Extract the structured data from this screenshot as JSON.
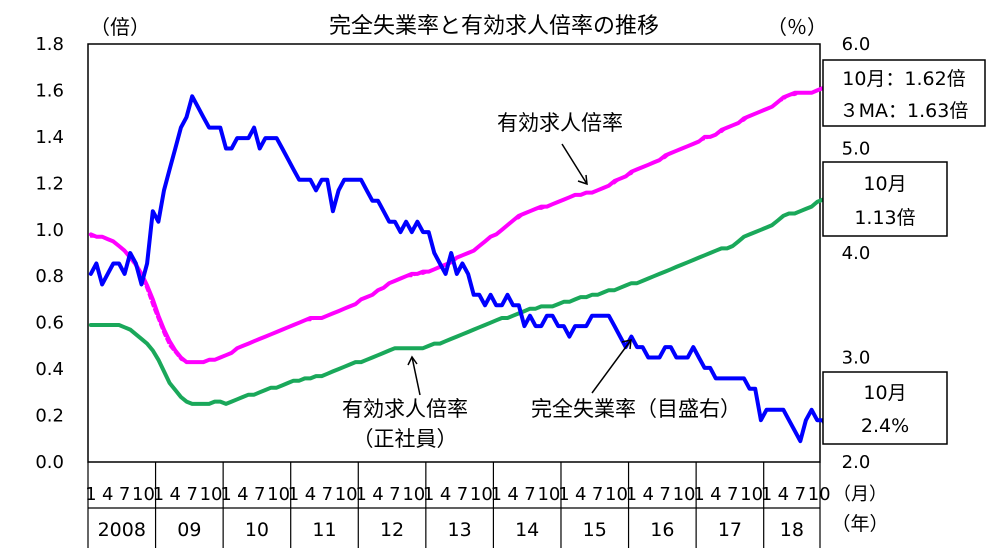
{
  "chart_data": {
    "type": "line",
    "title": "完全失業率と有効求人倍率の推移",
    "left_axis": {
      "unit": "（倍）",
      "ylim": [
        0,
        1.8
      ],
      "ticks": [
        "0.0",
        "0.2",
        "0.4",
        "0.6",
        "0.8",
        "1.0",
        "1.2",
        "1.4",
        "1.6",
        "1.8"
      ]
    },
    "right_axis": {
      "unit": "（％）",
      "ylim": [
        2.0,
        6.0
      ],
      "ticks": [
        "2.0",
        "3.0",
        "4.0",
        "5.0",
        "6.0"
      ]
    },
    "x_axis": {
      "start": "2008-01",
      "end": "2018-10",
      "month_ticks": [
        "1",
        "4",
        "7",
        "10"
      ],
      "month_unit": "（月）",
      "year_labels": [
        "2008",
        "09",
        "10",
        "11",
        "12",
        "13",
        "14",
        "15",
        "16",
        "17",
        "18"
      ],
      "year_unit": "（年）"
    },
    "series": [
      {
        "name": "有効求人倍率",
        "axis": "left",
        "color": "#ff00ff",
        "style": "solid",
        "values": [
          0.98,
          0.97,
          0.97,
          0.96,
          0.95,
          0.93,
          0.91,
          0.88,
          0.85,
          0.81,
          0.76,
          0.7,
          0.63,
          0.57,
          0.52,
          0.48,
          0.45,
          0.43,
          0.43,
          0.43,
          0.43,
          0.44,
          0.44,
          0.45,
          0.46,
          0.47,
          0.49,
          0.5,
          0.51,
          0.52,
          0.53,
          0.54,
          0.55,
          0.56,
          0.57,
          0.58,
          0.59,
          0.6,
          0.61,
          0.62,
          0.62,
          0.62,
          0.63,
          0.64,
          0.65,
          0.66,
          0.67,
          0.68,
          0.7,
          0.71,
          0.72,
          0.74,
          0.75,
          0.77,
          0.78,
          0.79,
          0.8,
          0.81,
          0.81,
          0.82,
          0.82,
          0.83,
          0.84,
          0.85,
          0.86,
          0.88,
          0.89,
          0.9,
          0.91,
          0.93,
          0.95,
          0.97,
          0.98,
          1.0,
          1.02,
          1.04,
          1.06,
          1.07,
          1.08,
          1.09,
          1.1,
          1.1,
          1.11,
          1.12,
          1.13,
          1.14,
          1.15,
          1.15,
          1.16,
          1.16,
          1.17,
          1.18,
          1.19,
          1.21,
          1.22,
          1.23,
          1.25,
          1.26,
          1.27,
          1.28,
          1.29,
          1.3,
          1.32,
          1.33,
          1.34,
          1.35,
          1.36,
          1.37,
          1.38,
          1.4,
          1.4,
          1.41,
          1.43,
          1.44,
          1.45,
          1.46,
          1.48,
          1.49,
          1.5,
          1.51,
          1.52,
          1.53,
          1.55,
          1.57,
          1.58,
          1.59,
          1.59,
          1.59,
          1.59,
          1.6,
          1.61,
          1.62,
          1.63,
          1.62
        ]
      },
      {
        "name": "3MA",
        "axis": "left",
        "color": "#ff00ff",
        "style": "dashed",
        "values": [
          0.97,
          0.97,
          0.97,
          0.96,
          0.95,
          0.93,
          0.91,
          0.88,
          0.84,
          0.8,
          0.74,
          0.67,
          0.61,
          0.55,
          0.5,
          0.47,
          0.44,
          0.43,
          0.43,
          0.43,
          0.43,
          0.44,
          0.44,
          0.45,
          0.46,
          0.47,
          0.49,
          0.5,
          0.51,
          0.52,
          0.53,
          0.54,
          0.55,
          0.56,
          0.57,
          0.58,
          0.59,
          0.6,
          0.61,
          0.61,
          0.62,
          0.62,
          0.63,
          0.64,
          0.65,
          0.66,
          0.67,
          0.68,
          0.7,
          0.71,
          0.72,
          0.74,
          0.75,
          0.77,
          0.78,
          0.79,
          0.8,
          0.8,
          0.81,
          0.81,
          0.82,
          0.83,
          0.84,
          0.85,
          0.86,
          0.88,
          0.89,
          0.9,
          0.91,
          0.93,
          0.95,
          0.97,
          0.98,
          1.0,
          1.02,
          1.04,
          1.05,
          1.07,
          1.08,
          1.09,
          1.09,
          1.1,
          1.11,
          1.12,
          1.13,
          1.14,
          1.15,
          1.15,
          1.16,
          1.16,
          1.17,
          1.18,
          1.19,
          1.2,
          1.22,
          1.23,
          1.24,
          1.26,
          1.27,
          1.28,
          1.29,
          1.3,
          1.31,
          1.33,
          1.34,
          1.35,
          1.36,
          1.37,
          1.38,
          1.39,
          1.4,
          1.41,
          1.42,
          1.44,
          1.45,
          1.46,
          1.47,
          1.49,
          1.5,
          1.51,
          1.52,
          1.53,
          1.55,
          1.56,
          1.58,
          1.58,
          1.59,
          1.59,
          1.59,
          1.6,
          1.61,
          1.62,
          1.63,
          1.63
        ]
      },
      {
        "name": "有効求人倍率（正社員）",
        "axis": "left",
        "color": "#1aa85a",
        "style": "solid",
        "values": [
          0.59,
          0.59,
          0.59,
          0.59,
          0.59,
          0.59,
          0.58,
          0.57,
          0.55,
          0.53,
          0.51,
          0.48,
          0.44,
          0.39,
          0.34,
          0.31,
          0.28,
          0.26,
          0.25,
          0.25,
          0.25,
          0.25,
          0.26,
          0.26,
          0.25,
          0.26,
          0.27,
          0.28,
          0.29,
          0.29,
          0.3,
          0.31,
          0.32,
          0.32,
          0.33,
          0.34,
          0.35,
          0.35,
          0.36,
          0.36,
          0.37,
          0.37,
          0.38,
          0.39,
          0.4,
          0.41,
          0.42,
          0.43,
          0.43,
          0.44,
          0.45,
          0.46,
          0.47,
          0.48,
          0.49,
          0.49,
          0.49,
          0.49,
          0.49,
          0.49,
          0.5,
          0.51,
          0.51,
          0.52,
          0.53,
          0.54,
          0.55,
          0.56,
          0.57,
          0.58,
          0.59,
          0.6,
          0.61,
          0.62,
          0.62,
          0.63,
          0.64,
          0.65,
          0.66,
          0.66,
          0.67,
          0.67,
          0.67,
          0.68,
          0.69,
          0.69,
          0.7,
          0.71,
          0.71,
          0.72,
          0.72,
          0.73,
          0.74,
          0.74,
          0.75,
          0.76,
          0.77,
          0.77,
          0.78,
          0.79,
          0.8,
          0.81,
          0.82,
          0.83,
          0.84,
          0.85,
          0.86,
          0.87,
          0.88,
          0.89,
          0.9,
          0.91,
          0.92,
          0.92,
          0.93,
          0.95,
          0.97,
          0.98,
          0.99,
          1.0,
          1.01,
          1.02,
          1.04,
          1.06,
          1.07,
          1.07,
          1.08,
          1.09,
          1.1,
          1.12,
          1.13,
          1.13,
          1.14,
          1.13
        ]
      },
      {
        "name": "完全失業率（目盛右）",
        "axis": "right",
        "color": "#0000ff",
        "style": "solid",
        "values": [
          3.8,
          3.9,
          3.7,
          3.8,
          3.9,
          3.9,
          3.8,
          4.0,
          3.9,
          3.7,
          3.9,
          4.4,
          4.3,
          4.6,
          4.8,
          5.0,
          5.2,
          5.3,
          5.5,
          5.4,
          5.3,
          5.2,
          5.2,
          5.2,
          5.0,
          5.0,
          5.1,
          5.1,
          5.1,
          5.2,
          5.0,
          5.1,
          5.1,
          5.1,
          5.0,
          4.9,
          4.8,
          4.7,
          4.7,
          4.7,
          4.6,
          4.7,
          4.7,
          4.4,
          4.6,
          4.7,
          4.7,
          4.7,
          4.7,
          4.6,
          4.5,
          4.5,
          4.4,
          4.3,
          4.3,
          4.2,
          4.3,
          4.2,
          4.3,
          4.2,
          4.2,
          4.0,
          3.9,
          3.8,
          4.0,
          3.8,
          3.9,
          3.8,
          3.6,
          3.6,
          3.5,
          3.6,
          3.5,
          3.5,
          3.6,
          3.5,
          3.5,
          3.3,
          3.4,
          3.3,
          3.3,
          3.4,
          3.4,
          3.3,
          3.3,
          3.2,
          3.3,
          3.3,
          3.3,
          3.4,
          3.4,
          3.4,
          3.4,
          3.3,
          3.2,
          3.1,
          3.2,
          3.1,
          3.1,
          3.0,
          3.0,
          3.0,
          3.1,
          3.1,
          3.0,
          3.0,
          3.0,
          3.1,
          3.0,
          2.9,
          2.9,
          2.8,
          2.8,
          2.8,
          2.8,
          2.8,
          2.8,
          2.7,
          2.7,
          2.4,
          2.5,
          2.5,
          2.5,
          2.5,
          2.4,
          2.3,
          2.2,
          2.4,
          2.5,
          2.4,
          2.4,
          2.3,
          2.4,
          2.4
        ]
      }
    ],
    "annotations": [
      {
        "id": "yukou",
        "lines": [
          "有効求人倍率"
        ]
      },
      {
        "id": "seishain",
        "lines": [
          "有効求人倍率",
          "（正社員）"
        ]
      },
      {
        "id": "shitsugyo",
        "lines": [
          "完全失業率（目盛右）"
        ]
      }
    ],
    "callouts": [
      {
        "id": "pink",
        "lines": [
          "10月：1.62倍",
          "３MA：1.63倍"
        ]
      },
      {
        "id": "green",
        "lines": [
          "10月",
          "1.13倍"
        ]
      },
      {
        "id": "blue",
        "lines": [
          "10月",
          "2.4%"
        ]
      }
    ],
    "legend": "none",
    "grid": false
  }
}
